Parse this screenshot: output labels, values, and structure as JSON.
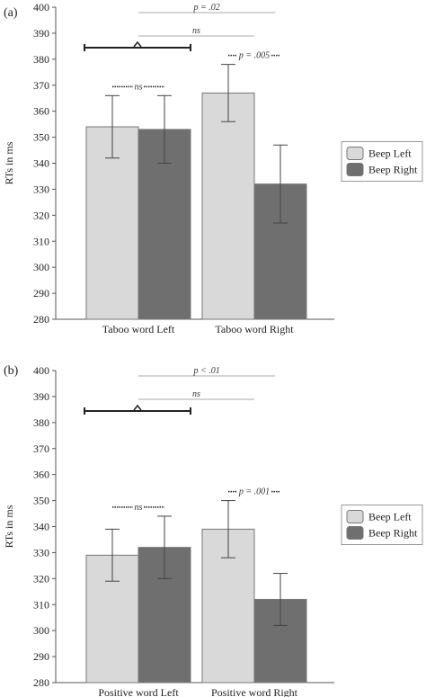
{
  "chart_data": [
    {
      "panel_label": "(a)",
      "type": "bar",
      "categories": [
        "Taboo word Left",
        "Taboo word Right"
      ],
      "series": [
        {
          "name": "Beep Left",
          "values": [
            354,
            367
          ],
          "errors": [
            12,
            11
          ],
          "color": "#d9d9d9"
        },
        {
          "name": "Beep Right",
          "values": [
            353,
            332
          ],
          "errors": [
            13,
            15
          ],
          "color": "#6f6f6f"
        }
      ],
      "ylabel": "RTs in ms",
      "ylim": [
        280,
        400
      ],
      "yticks": [
        280,
        290,
        300,
        310,
        320,
        330,
        340,
        350,
        360,
        370,
        380,
        390,
        400
      ],
      "legend": "right",
      "annotations": {
        "overall": "p = .02",
        "middle": "ns",
        "left_pair": "ns",
        "right_pair": "p = .005"
      }
    },
    {
      "panel_label": "(b)",
      "type": "bar",
      "categories": [
        "Positive word Left",
        "Positive word Right"
      ],
      "series": [
        {
          "name": "Beep Left",
          "values": [
            329,
            339
          ],
          "errors": [
            10,
            11
          ],
          "color": "#d9d9d9"
        },
        {
          "name": "Beep Right",
          "values": [
            332,
            312
          ],
          "errors": [
            12,
            10
          ],
          "color": "#6f6f6f"
        }
      ],
      "ylabel": "RTs in ms",
      "ylim": [
        280,
        400
      ],
      "yticks": [
        280,
        290,
        300,
        310,
        320,
        330,
        340,
        350,
        360,
        370,
        380,
        390,
        400
      ],
      "legend": "right",
      "annotations": {
        "overall": "p < .01",
        "middle": "ns",
        "left_pair": "ns",
        "right_pair": "p = .001"
      }
    }
  ]
}
